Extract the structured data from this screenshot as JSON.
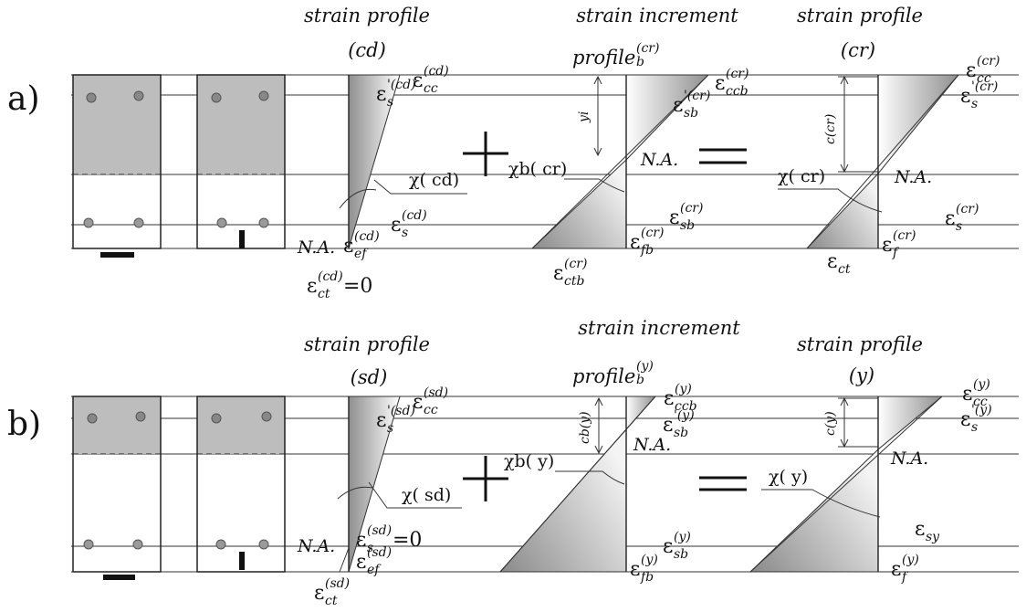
{
  "panels": {
    "a": {
      "label": "a)",
      "title_left": {
        "line1": "strain profile",
        "line2": "(cd)"
      },
      "title_mid": {
        "line1": "strain increment",
        "line2": "profile",
        "line2_sup": "(cr)",
        "line2_sub": "b"
      },
      "title_right": {
        "line1": "strain profile",
        "line2": "(cr)"
      },
      "left_profile": {
        "eps_cc": {
          "sym": "ε",
          "sup": "(cd)",
          "sub": "cc"
        },
        "eps_s_top": {
          "sym": "ε",
          "sup": "'(cd)",
          "sub": "s"
        },
        "chi": "χ( cd)",
        "eps_s_bot": {
          "sym": "ε",
          "sup": "(cd)",
          "sub": "s"
        },
        "eps_ef": {
          "sym": "ε",
          "sup": "(cd)",
          "sub": "ef"
        },
        "na": "N.A.",
        "eps_ct": {
          "sym": "ε",
          "sup": "(cd)",
          "sub": "ct",
          "tail": "=0"
        }
      },
      "mid_profile": {
        "yi": "yi",
        "eps_ccb": {
          "sym": "ε",
          "sup": "(cr)",
          "sub": "ccb"
        },
        "eps_sb_top": {
          "sym": "ε",
          "sup": "'(cr)",
          "sub": "sb"
        },
        "na": "N.A.",
        "chi": "χb( cr)",
        "eps_sb_bot": {
          "sym": "ε",
          "sup": "(cr)",
          "sub": "sb"
        },
        "eps_fb": {
          "sym": "ε",
          "sup": "(cr)",
          "sub": "fb"
        },
        "eps_ctb": {
          "sym": "ε",
          "sup": "(cr)",
          "sub": "ctb"
        }
      },
      "right_profile": {
        "c": "c(cr)",
        "eps_cc": {
          "sym": "ε",
          "sup": "(cr)",
          "sub": "cc"
        },
        "eps_s_top": {
          "sym": "ε",
          "sup": "'(cr)",
          "sub": "s"
        },
        "na": "N.A.",
        "chi": "χ( cr)",
        "eps_s_bot": {
          "sym": "ε",
          "sup": "(cr)",
          "sub": "s"
        },
        "eps_f": {
          "sym": "ε",
          "sup": "(cr)",
          "sub": "f"
        },
        "eps_ct": {
          "sym": "ε",
          "sub": "ct"
        }
      }
    },
    "b": {
      "label": "b)",
      "title_left": {
        "line1": "strain profile",
        "line2": "(sd)"
      },
      "title_mid": {
        "line1": "strain increment",
        "line2": "profile",
        "line2_sup": "(y)",
        "line2_sub": "b"
      },
      "title_right": {
        "line1": "strain profile",
        "line2": "(y)"
      },
      "left_profile": {
        "eps_cc": {
          "sym": "ε",
          "sup": "(sd)",
          "sub": "cc"
        },
        "eps_s_top": {
          "sym": "ε",
          "sup": "'(sd)",
          "sub": "s"
        },
        "chi": "χ( sd)",
        "na": "N.A.",
        "eps_s_bot": {
          "sym": "ε",
          "sup": "(sd)",
          "sub": "s",
          "tail": "=0"
        },
        "eps_ef": {
          "sym": "ε",
          "sup": "(sd)",
          "sub": "ef"
        },
        "eps_ct": {
          "sym": "ε",
          "sup": "(sd)",
          "sub": "ct"
        }
      },
      "mid_profile": {
        "c": "cb(y)",
        "eps_ccb": {
          "sym": "ε",
          "sup": "(y)",
          "sub": "ccb"
        },
        "eps_sb_top": {
          "sym": "ε",
          "sup": "'(y)",
          "sub": "sb"
        },
        "na": "N.A.",
        "chi": "χb( y)",
        "eps_sb_bot": {
          "sym": "ε",
          "sup": "(y)",
          "sub": "sb"
        },
        "eps_fb": {
          "sym": "ε",
          "sup": "(y)",
          "sub": "fb"
        }
      },
      "right_profile": {
        "c": "c(y)",
        "eps_cc": {
          "sym": "ε",
          "sup": "(y)",
          "sub": "cc"
        },
        "eps_s_top": {
          "sym": "ε",
          "sup": "'(y)",
          "sub": "s"
        },
        "na": "N.A.",
        "chi": "χ( y)",
        "eps_sy": {
          "sym": "ε",
          "sub": "sy"
        },
        "eps_f": {
          "sym": "ε",
          "sup": "(y)",
          "sub": "f"
        }
      }
    }
  },
  "operators": {
    "plus": "+",
    "equals": "="
  },
  "colors": {
    "concrete_fill": "#bdbdbd",
    "line": "#333333",
    "gradient_dark": "#8c8c8c",
    "gradient_light": "#ffffff"
  }
}
